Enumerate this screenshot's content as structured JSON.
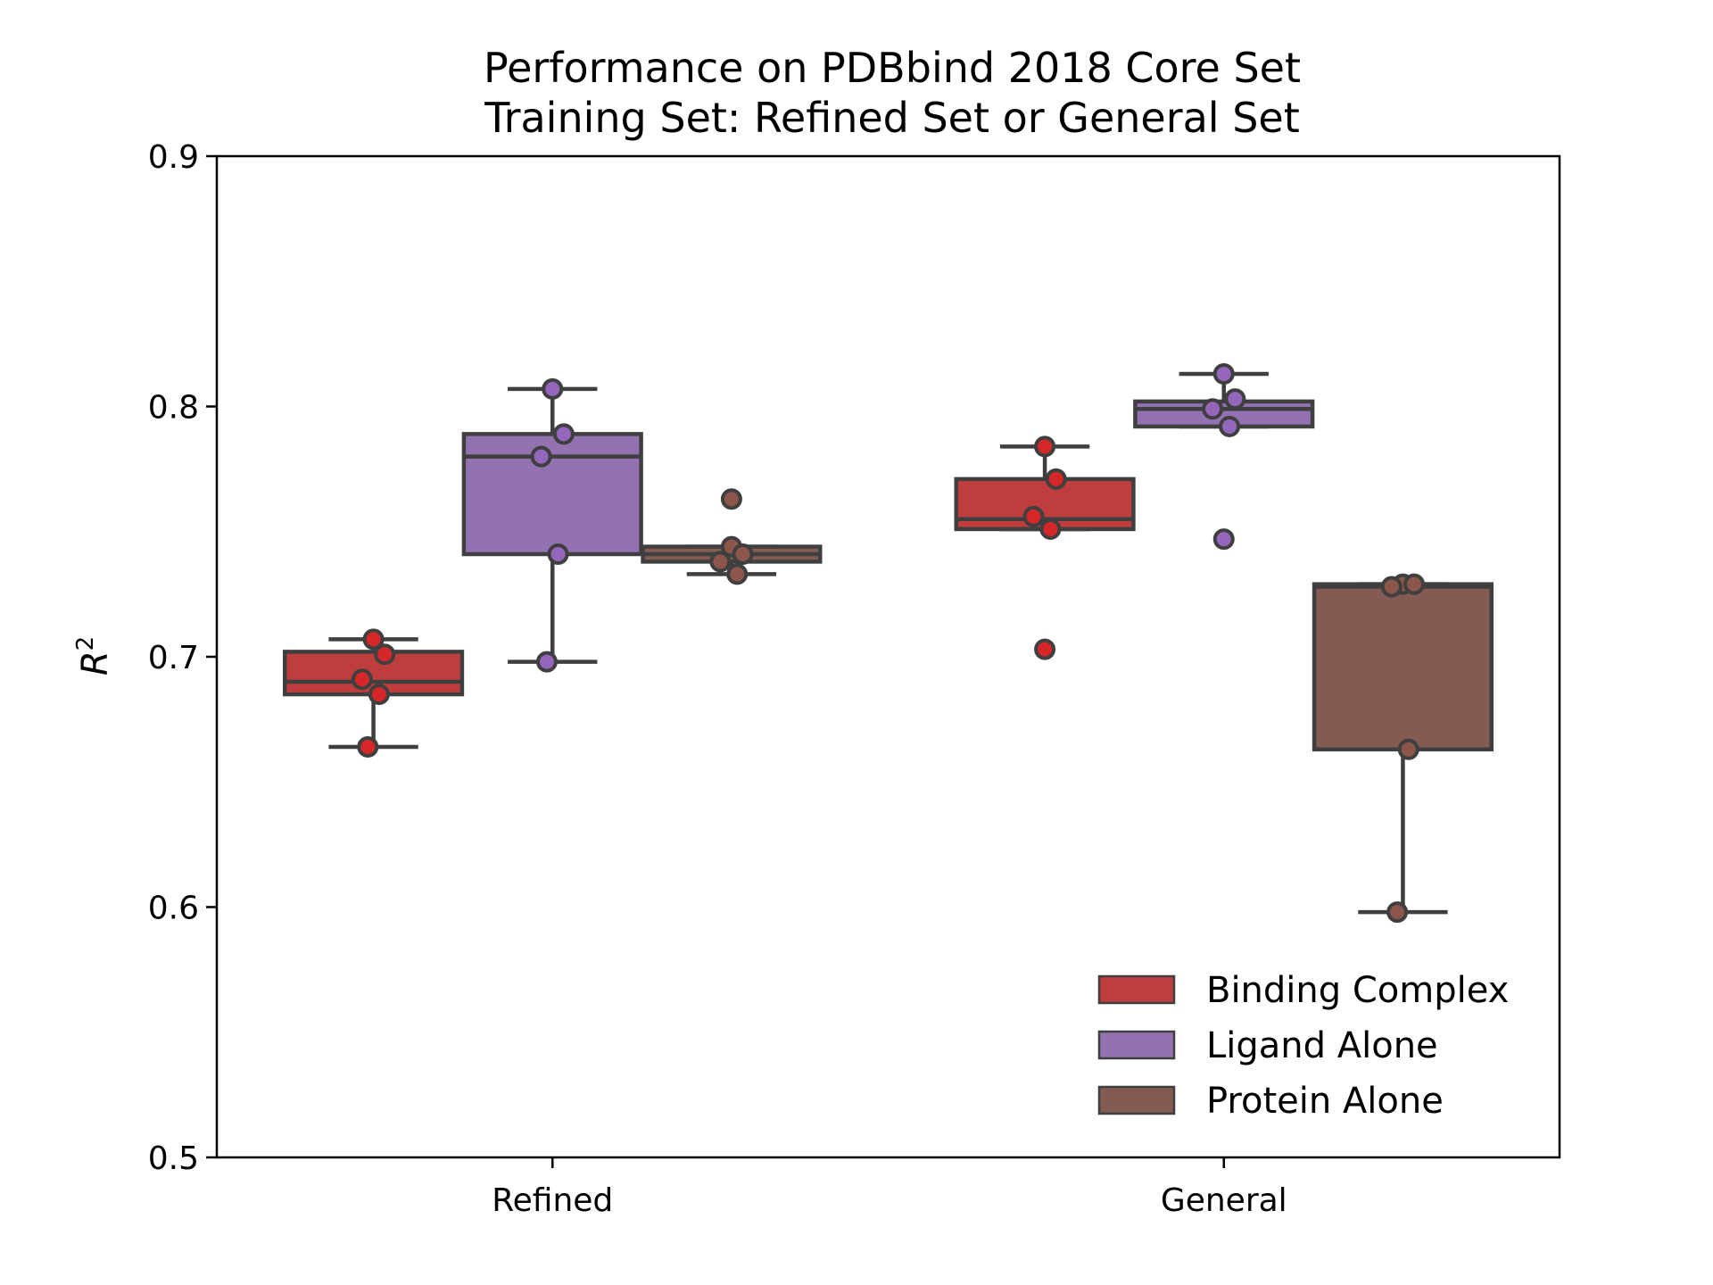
{
  "chart_data": {
    "type": "box",
    "title": "Performance on PDBbind 2018 Core Set",
    "subtitle": "Training Set: Refined Set or General Set",
    "xlabel": "",
    "ylabel": "R",
    "ylabel_superscript": "2",
    "ylim": [
      0.5,
      0.9
    ],
    "yticks": [
      "0.5",
      "0.6",
      "0.7",
      "0.8",
      "0.9"
    ],
    "categories": [
      "Refined",
      "General"
    ],
    "grid": false,
    "legend_position": "lower-right",
    "series": [
      {
        "name": "Binding Complex",
        "color": "#c03d3e",
        "point_color": "#d62728",
        "groups": [
          {
            "q1": 0.685,
            "median": 0.69,
            "q3": 0.702,
            "whisker_low": 0.664,
            "whisker_high": 0.707,
            "points": [
              0.707,
              0.701,
              0.691,
              0.685,
              0.664
            ],
            "outliers": []
          },
          {
            "q1": 0.751,
            "median": 0.755,
            "q3": 0.771,
            "whisker_low": 0.751,
            "whisker_high": 0.784,
            "points": [
              0.784,
              0.771,
              0.756,
              0.751
            ],
            "outliers": [
              0.703
            ]
          }
        ]
      },
      {
        "name": "Ligand Alone",
        "color": "#9372b2",
        "point_color": "#9467bd",
        "groups": [
          {
            "q1": 0.741,
            "median": 0.78,
            "q3": 0.789,
            "whisker_low": 0.698,
            "whisker_high": 0.807,
            "points": [
              0.807,
              0.789,
              0.78,
              0.741,
              0.698
            ],
            "outliers": []
          },
          {
            "q1": 0.792,
            "median": 0.799,
            "q3": 0.802,
            "whisker_low": 0.792,
            "whisker_high": 0.813,
            "points": [
              0.813,
              0.803,
              0.799,
              0.792
            ],
            "outliers": [
              0.747
            ]
          }
        ]
      },
      {
        "name": "Protein Alone",
        "color": "#845b53",
        "point_color": "#8c564b",
        "groups": [
          {
            "q1": 0.738,
            "median": 0.741,
            "q3": 0.744,
            "whisker_low": 0.733,
            "whisker_high": 0.744,
            "points": [
              0.744,
              0.741,
              0.738,
              0.733
            ],
            "outliers": [
              0.763
            ]
          },
          {
            "q1": 0.663,
            "median": 0.728,
            "q3": 0.729,
            "whisker_low": 0.598,
            "whisker_high": 0.729,
            "points": [
              0.729,
              0.729,
              0.728,
              0.663,
              0.598
            ],
            "outliers": []
          }
        ]
      }
    ]
  }
}
